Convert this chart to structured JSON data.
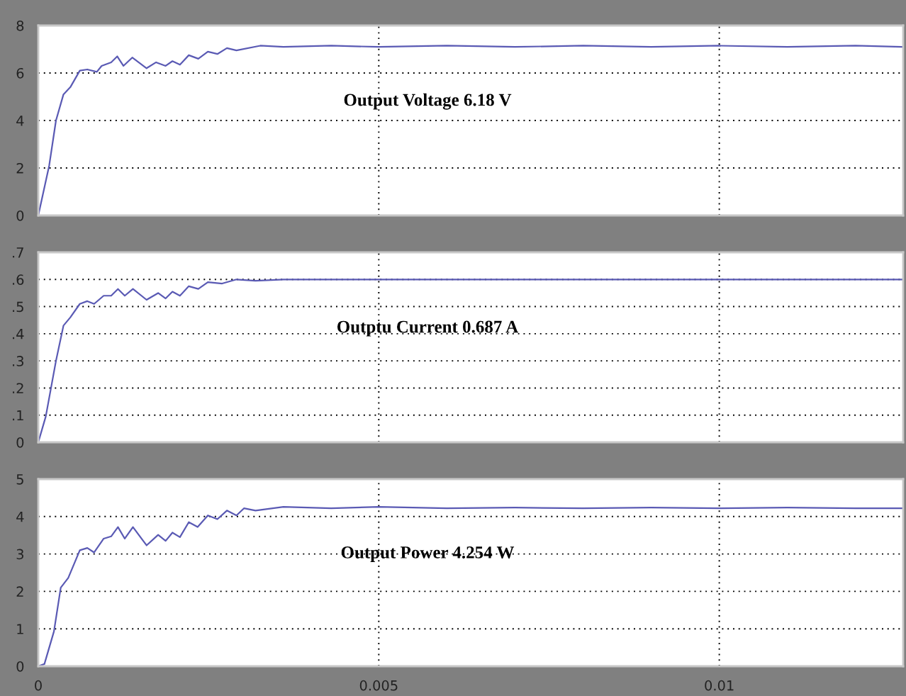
{
  "chart_data": [
    {
      "type": "line",
      "annotations": [
        "Output Voltage 6.18 V"
      ],
      "xlim": [
        0,
        0.0127
      ],
      "xticks": [
        0,
        0.005,
        0.01
      ],
      "ylim": [
        0,
        8
      ],
      "yticks": [
        0,
        2,
        4,
        6,
        8
      ],
      "grid": true,
      "tick_labels": "y",
      "x": [
        0,
        0.00016,
        0.00026,
        0.00037,
        0.00047,
        0.00061,
        0.00072,
        0.00086,
        0.00093,
        0.00107,
        0.00116,
        0.00125,
        0.00138,
        0.00159,
        0.00173,
        0.00187,
        0.00197,
        0.00208,
        0.00221,
        0.00235,
        0.00249,
        0.00263,
        0.00277,
        0.00291,
        0.00326,
        0.0036,
        0.0043,
        0.005,
        0.006,
        0.007,
        0.008,
        0.009,
        0.01,
        0.011,
        0.012,
        0.0127
      ],
      "series": [
        {
          "color": "#5a5ab4",
          "values": [
            0,
            2.1,
            4.0,
            5.1,
            5.4,
            6.1,
            6.15,
            6.05,
            6.3,
            6.45,
            6.7,
            6.3,
            6.65,
            6.2,
            6.45,
            6.3,
            6.5,
            6.35,
            6.75,
            6.6,
            6.9,
            6.8,
            7.05,
            6.95,
            7.15,
            7.1,
            7.15,
            7.1,
            7.15,
            7.1,
            7.15,
            7.1,
            7.15,
            7.1,
            7.15,
            7.1
          ]
        }
      ]
    },
    {
      "type": "line",
      "annotations": [
        "Outptu Current 0.687 A"
      ],
      "xlim": [
        0,
        0.0127
      ],
      "xticks": [
        0,
        0.005,
        0.01
      ],
      "ylim": [
        0,
        0.7
      ],
      "yticks": [
        0,
        {
          "value": 0.1,
          "label": ".1"
        },
        {
          "value": 0.2,
          "label": ".2"
        },
        {
          "value": 0.3,
          "label": ".3"
        },
        {
          "value": 0.4,
          "label": ".4"
        },
        {
          "value": 0.5,
          "label": ".5"
        },
        {
          "value": 0.6,
          "label": ".6"
        },
        {
          "value": 0.7,
          "label": ".7"
        }
      ],
      "grid": true,
      "tick_labels": "y",
      "x": [
        0,
        0.00011,
        0.00026,
        0.00037,
        0.00047,
        0.00061,
        0.00072,
        0.00082,
        0.00096,
        0.00107,
        0.00117,
        0.00127,
        0.00139,
        0.00159,
        0.00176,
        0.00187,
        0.00197,
        0.00208,
        0.00221,
        0.00235,
        0.00249,
        0.0027,
        0.00291,
        0.00319,
        0.0036,
        0.005,
        0.006,
        0.007,
        0.008,
        0.009,
        0.01,
        0.011,
        0.012,
        0.0127
      ],
      "series": [
        {
          "color": "#5a5ab4",
          "values": [
            0,
            0.095,
            0.3,
            0.43,
            0.46,
            0.51,
            0.52,
            0.51,
            0.54,
            0.54,
            0.565,
            0.54,
            0.565,
            0.525,
            0.55,
            0.53,
            0.555,
            0.54,
            0.575,
            0.565,
            0.59,
            0.585,
            0.6,
            0.595,
            0.6,
            0.6,
            0.6,
            0.6,
            0.6,
            0.6,
            0.6,
            0.6,
            0.6,
            0.6
          ]
        }
      ]
    },
    {
      "type": "line",
      "annotations": [
        "Output Power 4.254 W"
      ],
      "xlim": [
        0,
        0.0127
      ],
      "xticks": [
        0,
        0.005,
        0.01
      ],
      "ylim": [
        0,
        5
      ],
      "yticks": [
        0,
        1,
        2,
        3,
        4,
        5
      ],
      "grid": true,
      "x": [
        0,
        9e-05,
        0.00023,
        0.00033,
        0.00044,
        0.00061,
        0.00072,
        0.00082,
        0.00096,
        0.00107,
        0.00117,
        0.00127,
        0.00139,
        0.00159,
        0.00176,
        0.00187,
        0.00197,
        0.00208,
        0.00221,
        0.00234,
        0.00249,
        0.00263,
        0.00277,
        0.00291,
        0.00302,
        0.00319,
        0.0036,
        0.0043,
        0.005,
        0.006,
        0.007,
        0.008,
        0.009,
        0.01,
        0.011,
        0.012,
        0.0127
      ],
      "series": [
        {
          "color": "#5a5ab4",
          "values": [
            0,
            0.06,
            0.93,
            2.1,
            2.36,
            3.1,
            3.16,
            3.04,
            3.41,
            3.47,
            3.72,
            3.41,
            3.72,
            3.23,
            3.51,
            3.35,
            3.57,
            3.45,
            3.85,
            3.72,
            4.03,
            3.93,
            4.16,
            4.03,
            4.22,
            4.16,
            4.26,
            4.22,
            4.26,
            4.22,
            4.24,
            4.22,
            4.24,
            4.22,
            4.24,
            4.22,
            4.22
          ]
        }
      ]
    }
  ]
}
